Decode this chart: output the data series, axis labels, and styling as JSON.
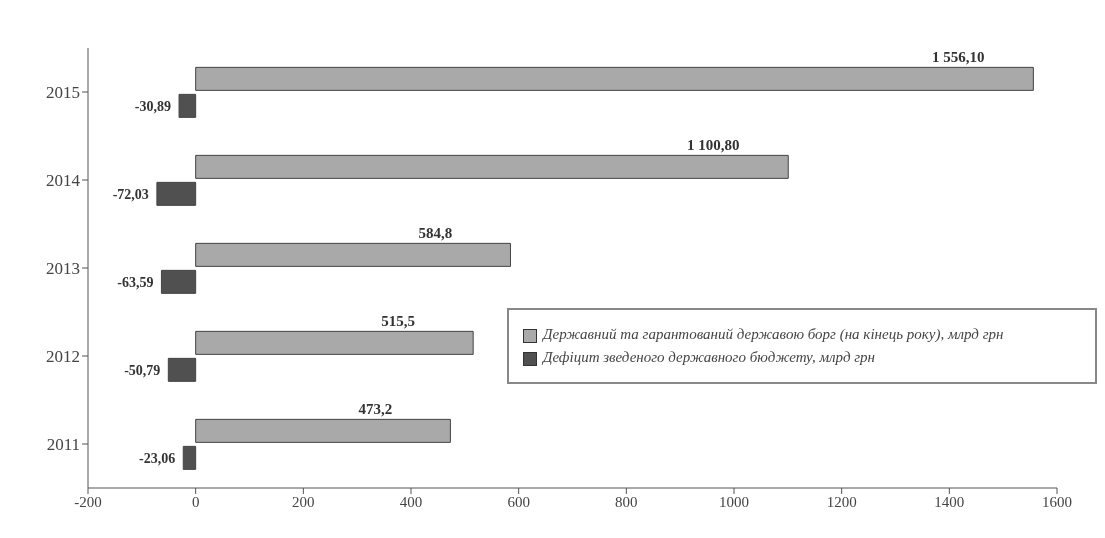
{
  "chart_data": {
    "type": "bar",
    "orientation": "horizontal",
    "categories": [
      "2015",
      "2014",
      "2013",
      "2012",
      "2011"
    ],
    "series": [
      {
        "name": "Державний та гарантований державою борг (на кінець року), млрд грн",
        "color": "#a9a9a9",
        "values": [
          1556.1,
          1100.8,
          584.8,
          515.5,
          473.2
        ],
        "value_labels": [
          "1 556,10",
          "1 100,80",
          "584,8",
          "515,5",
          "473,2"
        ]
      },
      {
        "name": "Дефіцит зведеного державного бюджету, млрд грн",
        "color": "#505050",
        "values": [
          -30.89,
          -72.03,
          -63.59,
          -50.79,
          -23.06
        ],
        "value_labels": [
          "-30,89",
          "-72,03",
          "-63,59",
          "-50,79",
          "-23,06"
        ]
      }
    ],
    "xlim": [
      -200,
      1600
    ],
    "xticks": [
      -200,
      0,
      200,
      400,
      600,
      800,
      1000,
      1200,
      1400,
      1600
    ],
    "legend": "bottom right"
  }
}
